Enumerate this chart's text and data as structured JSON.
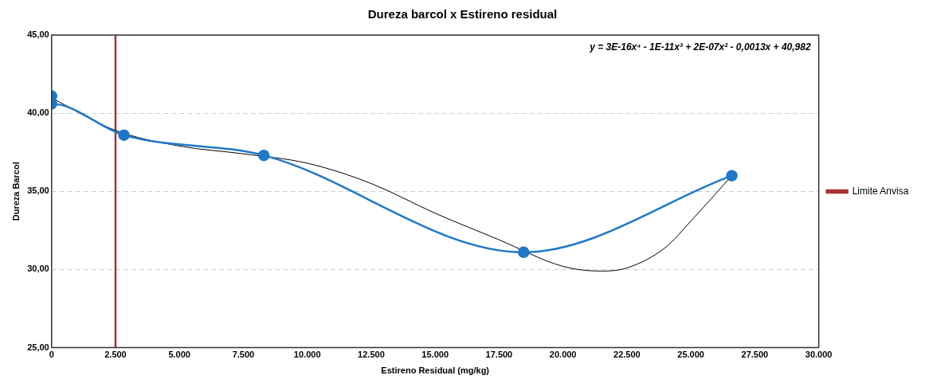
{
  "chart_data": {
    "type": "line",
    "title": "Dureza barcol x Estireno residual",
    "xlabel": "Estireno Residual (mg/kg)",
    "ylabel": "Dureza Barcol",
    "xlim": [
      0,
      30000
    ],
    "xticks": [
      0,
      {
        "value": 2500,
        "label": "2.500"
      },
      {
        "value": 5000,
        "label": "5.000"
      },
      {
        "value": 7500,
        "label": "7.500"
      },
      {
        "value": 10000,
        "label": "10.000"
      },
      {
        "value": 12500,
        "label": "12.500"
      },
      {
        "value": 15000,
        "label": "15.000"
      },
      {
        "value": 17500,
        "label": "17.500"
      },
      {
        "value": 20000,
        "label": "20.000"
      },
      {
        "value": 22500,
        "label": "22.500"
      },
      {
        "value": 25000,
        "label": "25.000"
      },
      {
        "value": 27500,
        "label": "27.500"
      },
      {
        "value": 30000,
        "label": "30.000"
      }
    ],
    "ylim": [
      25,
      45
    ],
    "yticks": [
      {
        "value": 25,
        "label": "25,00"
      },
      {
        "value": 30,
        "label": "30,00"
      },
      {
        "value": 35,
        "label": "35,00"
      },
      {
        "value": 40,
        "label": "40,00"
      },
      {
        "value": 45,
        "label": "45,00"
      }
    ],
    "grid": "y",
    "legend": "right",
    "annotations": [
      "y = 3E-16x⁴ - 1E-11x³ + 2E-07x² - 0,0013x + 40,982"
    ],
    "series": [
      {
        "color": "#1f77c8",
        "marker": "circle",
        "x": [
          0,
          0,
          2830,
          8300,
          18460,
          26600
        ],
        "values": [
          41.1,
          40.6,
          38.6,
          37.3,
          31.1,
          36.0
        ]
      },
      {
        "color": "#000000",
        "marker": "none",
        "x": [
          0,
          2500,
          5000,
          7500,
          10000,
          12500,
          15000,
          17500,
          20000,
          21500,
          22500,
          24000,
          25000,
          26600
        ],
        "values": [
          40.98,
          38.9,
          37.9,
          37.4,
          36.8,
          35.5,
          33.6,
          31.9,
          30.2,
          29.9,
          30.1,
          31.4,
          33.1,
          36.0
        ]
      },
      {
        "name": "Limite Anvisa",
        "color": "#a83232",
        "marker": "none",
        "x": [
          2500,
          2500
        ],
        "values": [
          25,
          45
        ]
      }
    ]
  }
}
